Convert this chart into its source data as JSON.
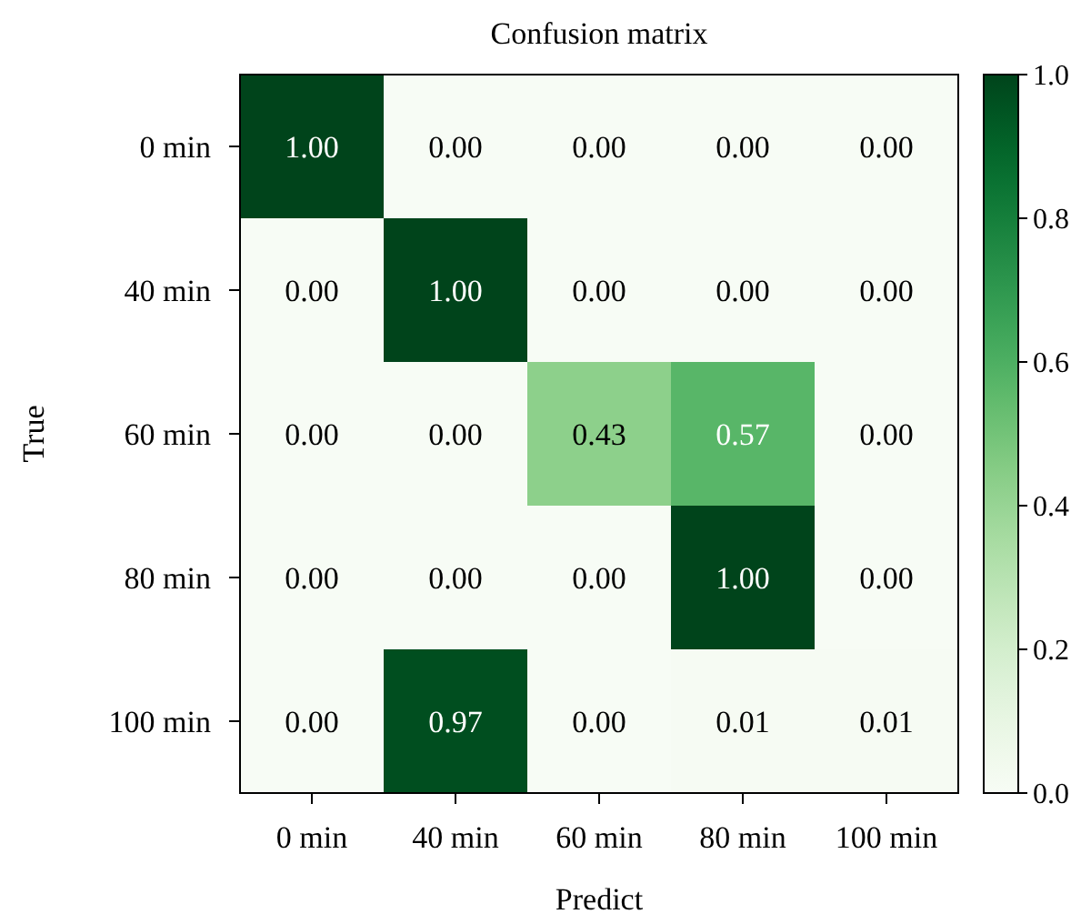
{
  "chart_data": {
    "type": "heatmap",
    "title": "Confusion matrix",
    "xlabel": "Predict",
    "ylabel": "True",
    "categories": [
      "0 min",
      "40 min",
      "60 min",
      "80 min",
      "100 min"
    ],
    "y_categories": [
      "0 min",
      "40 min",
      "60 min",
      "80 min",
      "100 min"
    ],
    "cells": [
      [
        1,
        0,
        0,
        0,
        0
      ],
      [
        0,
        1,
        0,
        0,
        0
      ],
      [
        0,
        0,
        0.43,
        0.57,
        0
      ],
      [
        0,
        0,
        0,
        1,
        0
      ],
      [
        0,
        0.97,
        0,
        0.01,
        0.01
      ]
    ],
    "cell_labels": [
      [
        "1.00",
        "0.00",
        "0.00",
        "0.00",
        "0.00"
      ],
      [
        "0.00",
        "1.00",
        "0.00",
        "0.00",
        "0.00"
      ],
      [
        "0.00",
        "0.00",
        "0.43",
        "0.57",
        "0.00"
      ],
      [
        "0.00",
        "0.00",
        "0.00",
        "1.00",
        "0.00"
      ],
      [
        "0.00",
        "0.97",
        "0.00",
        "0.01",
        "0.01"
      ]
    ],
    "clim": [
      0,
      1
    ],
    "cticks": [
      {
        "value": 0,
        "label": "0.0"
      },
      {
        "value": 0.2,
        "label": "0.2"
      },
      {
        "value": 0.4,
        "label": "0.4"
      },
      {
        "value": 0.6,
        "label": "0.6"
      },
      {
        "value": 0.8,
        "label": "0.8"
      },
      {
        "value": 1,
        "label": "1.0"
      }
    ]
  }
}
